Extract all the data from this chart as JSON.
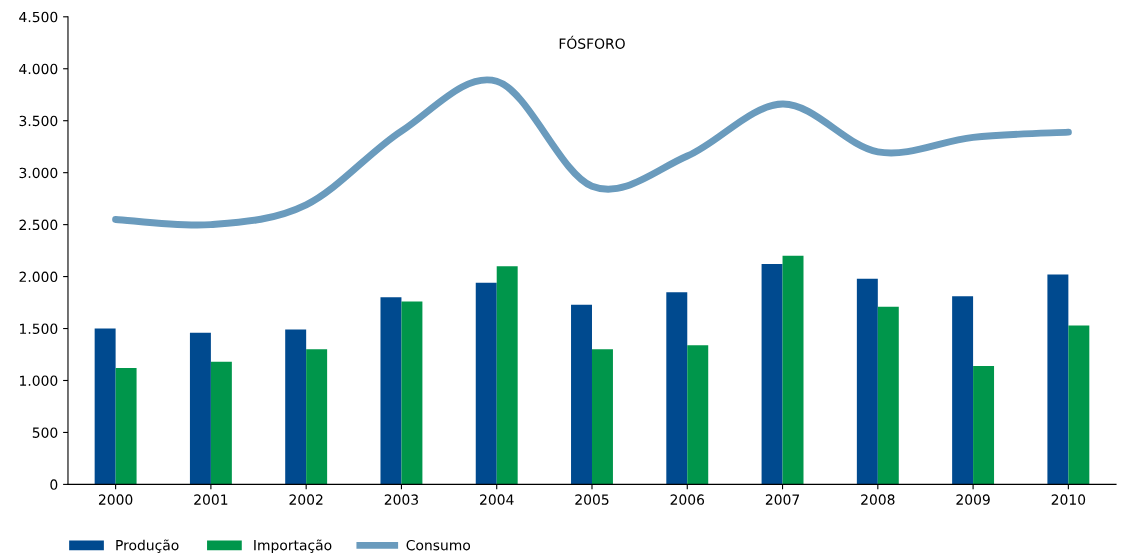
{
  "chart_data": {
    "type": "bar",
    "title": "FÓSFORO",
    "categories": [
      "2000",
      "2001",
      "2002",
      "2003",
      "2004",
      "2005",
      "2006",
      "2007",
      "2008",
      "2009",
      "2010"
    ],
    "series": [
      {
        "name": "Produção",
        "color": "#004a8f",
        "values": [
          1500,
          1460,
          1490,
          1800,
          1940,
          1730,
          1850,
          2120,
          1980,
          1810,
          2020
        ]
      },
      {
        "name": "Importação",
        "color": "#00964b",
        "values": [
          1120,
          1180,
          1300,
          1760,
          2100,
          1300,
          1340,
          2200,
          1710,
          1140,
          1530
        ]
      },
      {
        "name": "Consumo",
        "type": "line",
        "color": "#6a9bbd",
        "values": [
          2550,
          2500,
          2690,
          3400,
          3880,
          2870,
          3160,
          3660,
          3200,
          3340,
          3390
        ]
      }
    ],
    "ylim": [
      0,
      4500
    ],
    "yticks": [
      0,
      500,
      {
        "value": 1000,
        "label": "1.000"
      },
      {
        "value": 1500,
        "label": "1.500"
      },
      {
        "value": 2000,
        "label": "2.000"
      },
      {
        "value": 2500,
        "label": "2.500"
      },
      {
        "value": 3000,
        "label": "3.000"
      },
      {
        "value": 3500,
        "label": "3.500"
      },
      {
        "value": 4000,
        "label": "4.000"
      },
      {
        "value": 4500,
        "label": "4.500"
      }
    ],
    "grid": false,
    "legend": "bottom left"
  }
}
